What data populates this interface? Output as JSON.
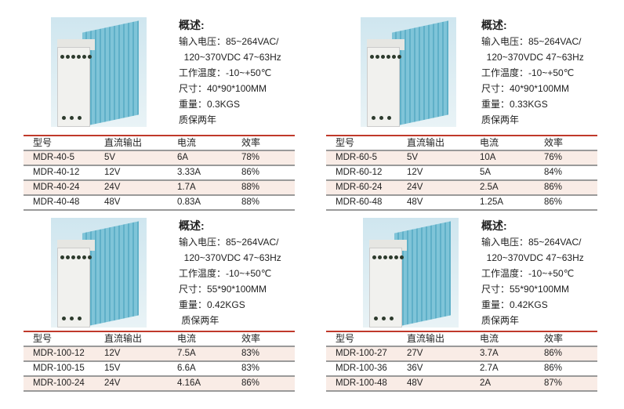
{
  "panels": [
    {
      "spec": {
        "title": "概述:",
        "lines": [
          "输入电压：85~264VAC/",
          "  120~370VDC 47~63Hz",
          "工作温度：-10~+50℃",
          "尺寸：40*90*100MM",
          "重量：0.3KGS",
          "质保两年"
        ]
      },
      "table": {
        "headers": [
          "型号",
          "直流输出",
          "电流",
          "效率"
        ],
        "rows": [
          [
            "MDR-40-5",
            "5V",
            "6A",
            "78%"
          ],
          [
            "MDR-40-12",
            "12V",
            "3.33A",
            "86%"
          ],
          [
            "MDR-40-24",
            "24V",
            "1.7A",
            "88%"
          ],
          [
            "MDR-40-48",
            "48V",
            "0.83A",
            "88%"
          ]
        ]
      }
    },
    {
      "spec": {
        "title": "概述:",
        "lines": [
          "输入电压：85~264VAC/",
          "  120~370VDC 47~63Hz",
          "工作温度：-10~+50℃",
          "尺寸：40*90*100MM",
          "重量：0.33KGS",
          "质保两年"
        ]
      },
      "table": {
        "headers": [
          "型号",
          "直流输出",
          "电流",
          "效率"
        ],
        "rows": [
          [
            "MDR-60-5",
            "5V",
            "10A",
            "76%"
          ],
          [
            "MDR-60-12",
            "12V",
            "5A",
            "84%"
          ],
          [
            "MDR-60-24",
            "24V",
            "2.5A",
            "86%"
          ],
          [
            "MDR-60-48",
            "48V",
            "1.25A",
            "86%"
          ]
        ]
      }
    },
    {
      "spec": {
        "title": "概述:",
        "lines": [
          "输入电压：85~264VAC/",
          "  120~370VDC 47~63Hz",
          "工作温度：-10~+50℃",
          "尺寸：55*90*100MM",
          "重量：0.42KGS",
          " 质保两年"
        ]
      },
      "table": {
        "headers": [
          "型号",
          "直流输出",
          "电流",
          "效率"
        ],
        "rows": [
          [
            "MDR-100-12",
            "12V",
            "7.5A",
            "83%"
          ],
          [
            "MDR-100-15",
            "15V",
            "6.6A",
            "83%"
          ],
          [
            "MDR-100-24",
            "24V",
            "4.16A",
            "86%"
          ]
        ]
      }
    },
    {
      "spec": {
        "title": "概述:",
        "lines": [
          "输入电压：85~264VAC/",
          "  120~370VDC 47~63Hz",
          "工作温度：-10~+50℃",
          "尺寸：55*90*100MM",
          "重量：0.42KGS",
          "质保两年"
        ]
      },
      "table": {
        "headers": [
          "型号",
          "直流输出",
          "电流",
          "效率"
        ],
        "rows": [
          [
            "MDR-100-27",
            "27V",
            "3.7A",
            "86%"
          ],
          [
            "MDR-100-36",
            "36V",
            "2.7A",
            "86%"
          ],
          [
            "MDR-100-48",
            "48V",
            "2A",
            "87%"
          ]
        ]
      }
    }
  ]
}
